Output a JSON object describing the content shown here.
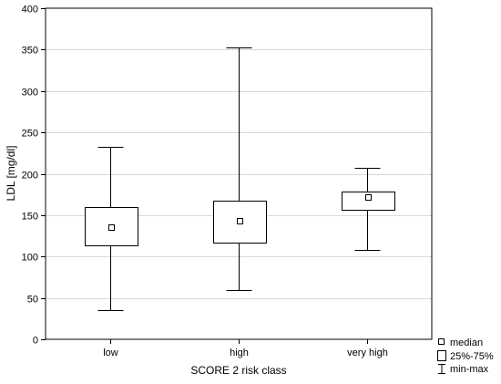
{
  "chart_data": {
    "type": "box",
    "xlabel": "SCORE 2 risk class",
    "ylabel": "LDL [mg/dl]",
    "ylim": [
      0,
      400
    ],
    "yticks": [
      0,
      50,
      100,
      150,
      200,
      250,
      300,
      350,
      400
    ],
    "grid": true,
    "legend_position": "bottom-right",
    "categories": [
      "low",
      "high",
      "very high"
    ],
    "boxes": [
      {
        "category": "low",
        "min": 35,
        "q1": 113,
        "median": 136,
        "q3": 160,
        "max": 232
      },
      {
        "category": "high",
        "min": 59,
        "q1": 117,
        "median": 143,
        "q3": 167,
        "max": 353
      },
      {
        "category": "very high",
        "min": 108,
        "q1": 157,
        "median": 172,
        "q3": 178,
        "max": 207
      }
    ],
    "legend": {
      "median": "median",
      "box": "25%-75%",
      "whisker": "min-max"
    }
  }
}
